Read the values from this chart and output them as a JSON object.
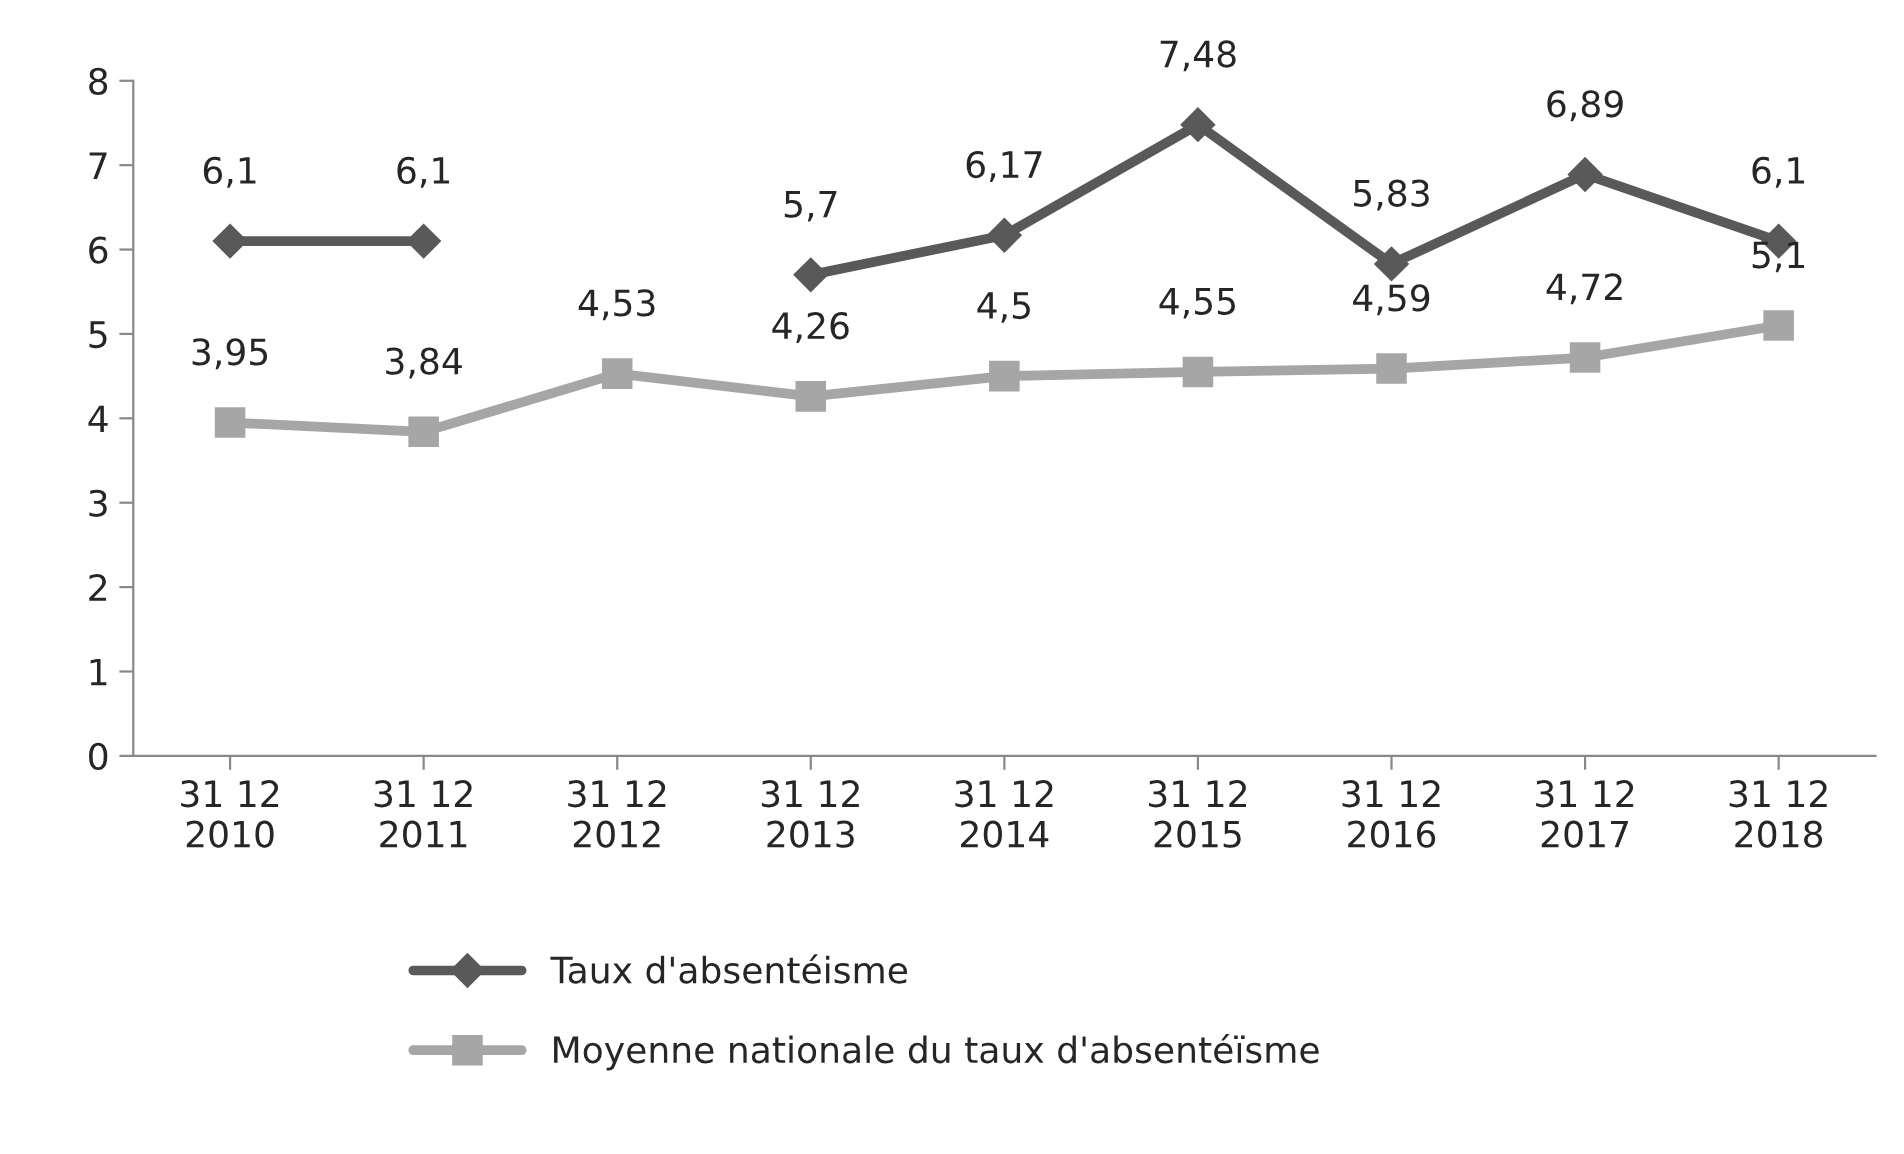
{
  "chart_data": {
    "type": "line",
    "categories": [
      "31 12\n2010",
      "31 12\n2011",
      "31 12\n2012",
      "31 12\n2013",
      "31 12\n2014",
      "31 12\n2015",
      "31 12\n2016",
      "31 12\n2017",
      "31 12\n2018"
    ],
    "series": [
      {
        "name": "Taux d'absentéisme",
        "color": "#595959",
        "marker": "diamond",
        "values": [
          6.1,
          6.1,
          null,
          5.7,
          6.17,
          7.48,
          5.83,
          6.89,
          6.1
        ],
        "value_labels": [
          "6,1",
          "6,1",
          null,
          "5,7",
          "6,17",
          "7,48",
          "5,83",
          "6,89",
          "6,1"
        ]
      },
      {
        "name": "Moyenne nationale du taux d'absentéïsme",
        "color": "#a6a6a6",
        "marker": "square",
        "values": [
          3.95,
          3.84,
          4.53,
          4.26,
          4.5,
          4.55,
          4.59,
          4.72,
          5.1
        ],
        "value_labels": [
          "3,95",
          "3,84",
          "4,53",
          "4,26",
          "4,5",
          "4,55",
          "4,59",
          "4,72",
          "5,1"
        ]
      }
    ],
    "ylim": [
      0,
      8
    ],
    "yticks": [
      0,
      1,
      2,
      3,
      4,
      5,
      6,
      7,
      8
    ],
    "grid": false,
    "legend": "bottom",
    "line_style": "solid"
  }
}
